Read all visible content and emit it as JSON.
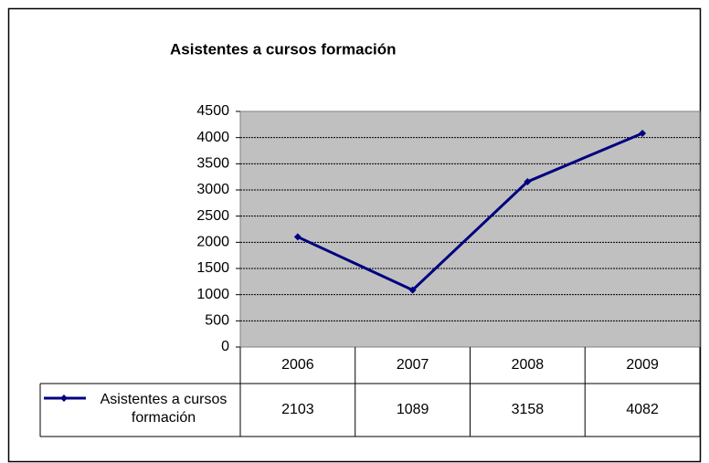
{
  "chart_data": {
    "type": "line",
    "title": "Asistentes a cursos formación",
    "categories": [
      "2006",
      "2007",
      "2008",
      "2009"
    ],
    "series": [
      {
        "name": "Asistentes a cursos formación",
        "color": "#000080",
        "values": [
          2103,
          1089,
          3158,
          4082
        ]
      }
    ],
    "ylim": [
      0,
      4500
    ],
    "yticks": [
      0,
      500,
      1000,
      1500,
      2000,
      2500,
      3000,
      3500,
      4000,
      4500
    ],
    "grid": true,
    "data_table": true
  }
}
